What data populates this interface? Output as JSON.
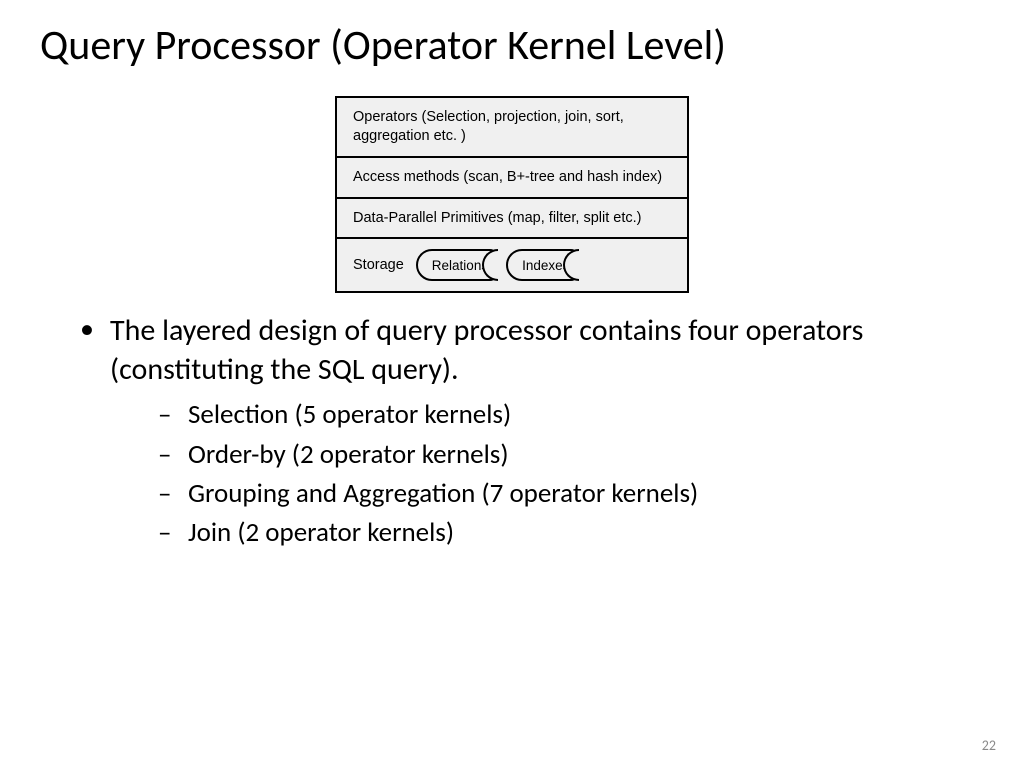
{
  "title": "Query Processor (Operator Kernel Level)",
  "diagram": {
    "layers": [
      "Operators (Selection, projection, join, sort, aggregation etc. )",
      "Access methods (scan, B+-tree and hash index)",
      "Data-Parallel Primitives (map, filter, split etc.)"
    ],
    "storage": {
      "label": "Storage",
      "items": [
        "Relations",
        "Indexes"
      ]
    },
    "bg_color": "#f0f0f0",
    "border_color": "#000000",
    "font_size": 14.5
  },
  "bullets": {
    "main": "The layered design of query processor contains four operators (constituting the SQL query).",
    "subs": [
      "Selection (5 operator kernels)",
      "Order-by (2 operator kernels)",
      "Grouping and Aggregation (7 operator kernels)",
      "Join (2 operator kernels)"
    ]
  },
  "page_number": "22",
  "colors": {
    "background": "#ffffff",
    "text": "#000000",
    "pagenum": "#8a8a8a"
  },
  "typography": {
    "title_size": 42,
    "body_size": 30,
    "sub_size": 27,
    "diagram_size": 14.5
  }
}
